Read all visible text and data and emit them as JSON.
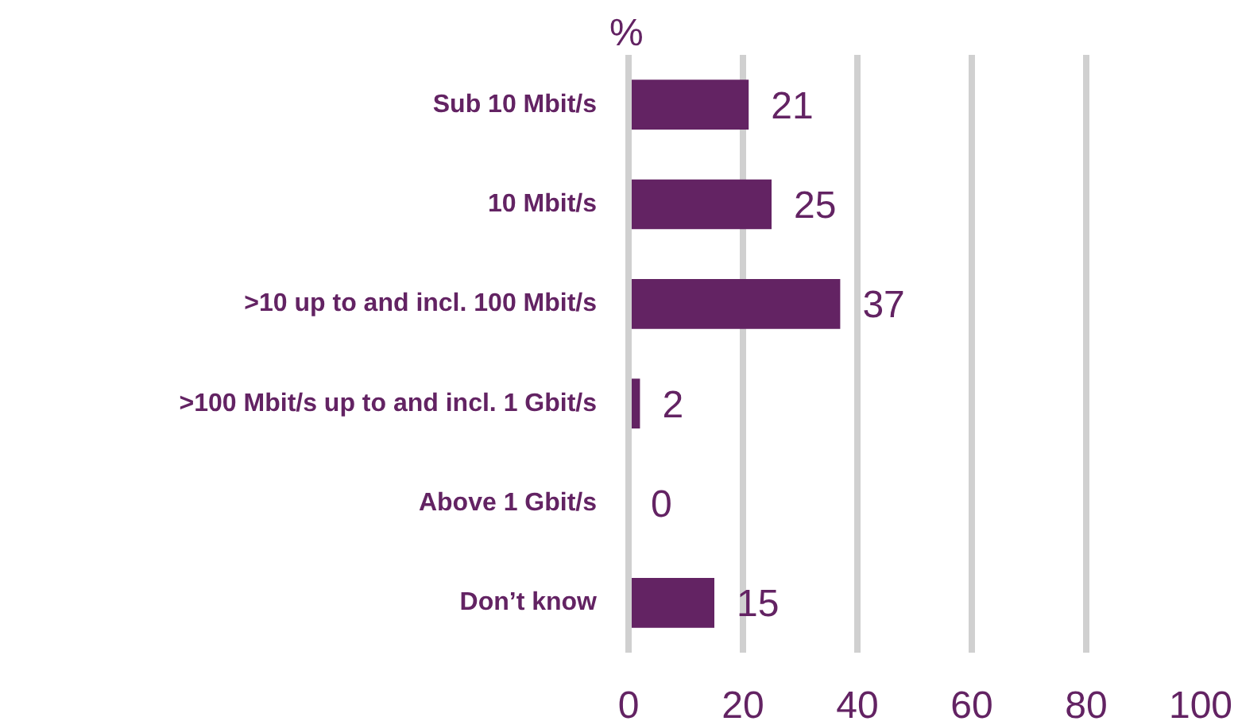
{
  "chart_data": {
    "type": "bar",
    "orientation": "horizontal",
    "xlabel": "%",
    "categories": [
      "Sub 10 Mbit/s",
      "10 Mbit/s",
      ">10 up to and incl. 100 Mbit/s",
      ">100 Mbit/s up to and incl. 1 Gbit/s",
      "Above 1 Gbit/s",
      "Don’t know"
    ],
    "values": [
      21,
      25,
      37,
      2,
      0,
      15
    ],
    "color": "#632363",
    "xlim": [
      0,
      100
    ],
    "xticks": [
      0,
      20,
      40,
      60,
      80,
      100
    ],
    "grid": "x",
    "data_labels": true
  }
}
